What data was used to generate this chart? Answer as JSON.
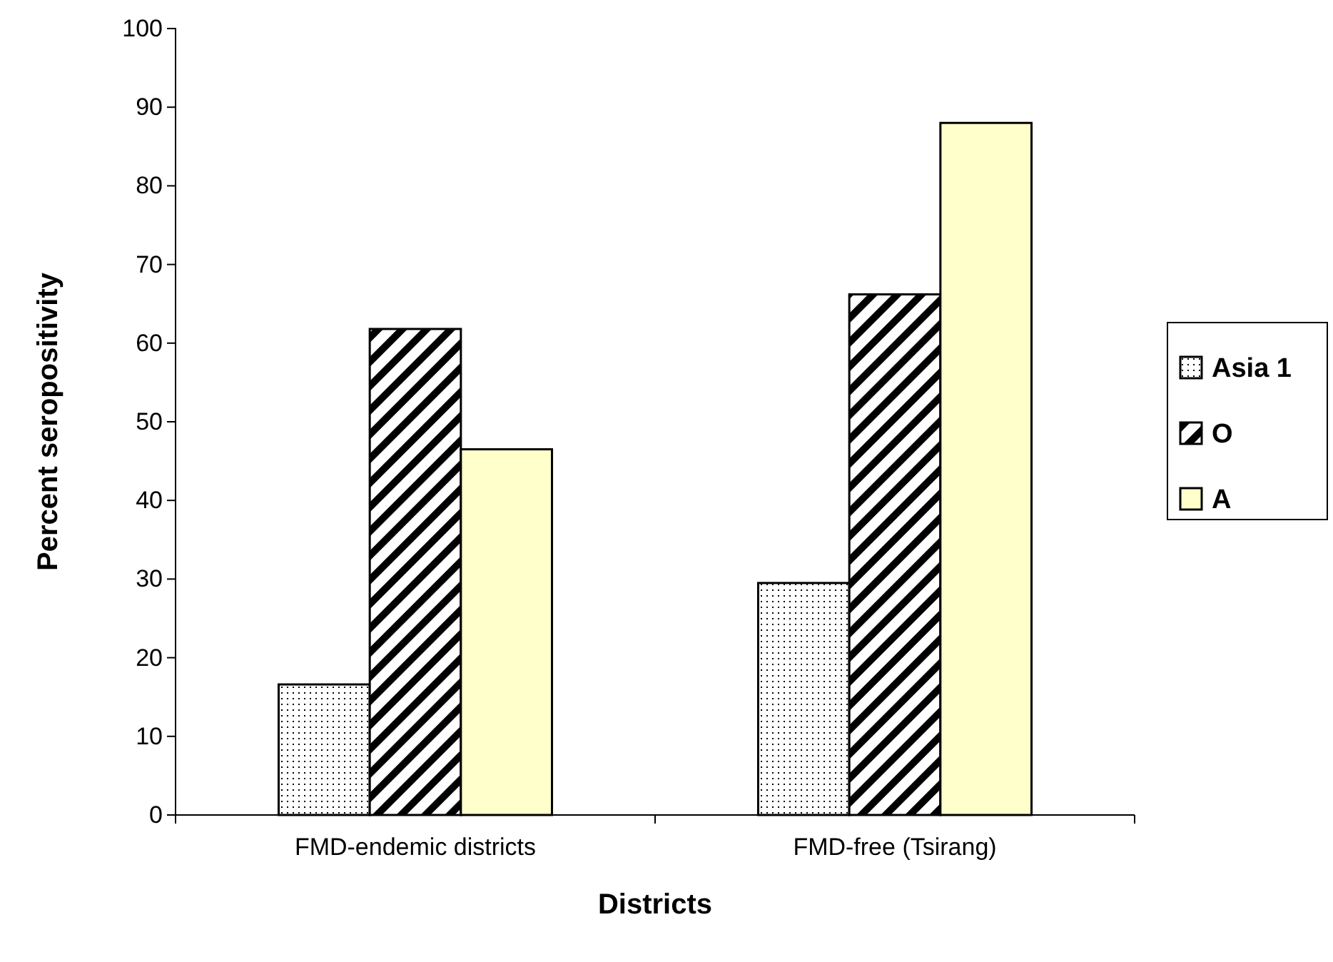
{
  "chart_data": {
    "type": "bar",
    "xlabel": "Districts",
    "ylabel": "Percent seropositivity",
    "categories": [
      "FMD-endemic districts",
      "FMD-free (Tsirang)"
    ],
    "series": [
      {
        "name": "Asia 1",
        "color": "#000000",
        "values": [
          16.6,
          29.5
        ]
      },
      {
        "name": "O",
        "color": "#000000",
        "values": [
          61.8,
          66.2
        ]
      },
      {
        "name": "A",
        "color": "#ffffcc",
        "values": [
          46.5,
          88.0
        ]
      }
    ],
    "ylim": [
      0,
      100
    ],
    "yticks": [
      0,
      10,
      20,
      30,
      40,
      50,
      60,
      70,
      80,
      90,
      100
    ],
    "grid": false,
    "legend": "right"
  }
}
